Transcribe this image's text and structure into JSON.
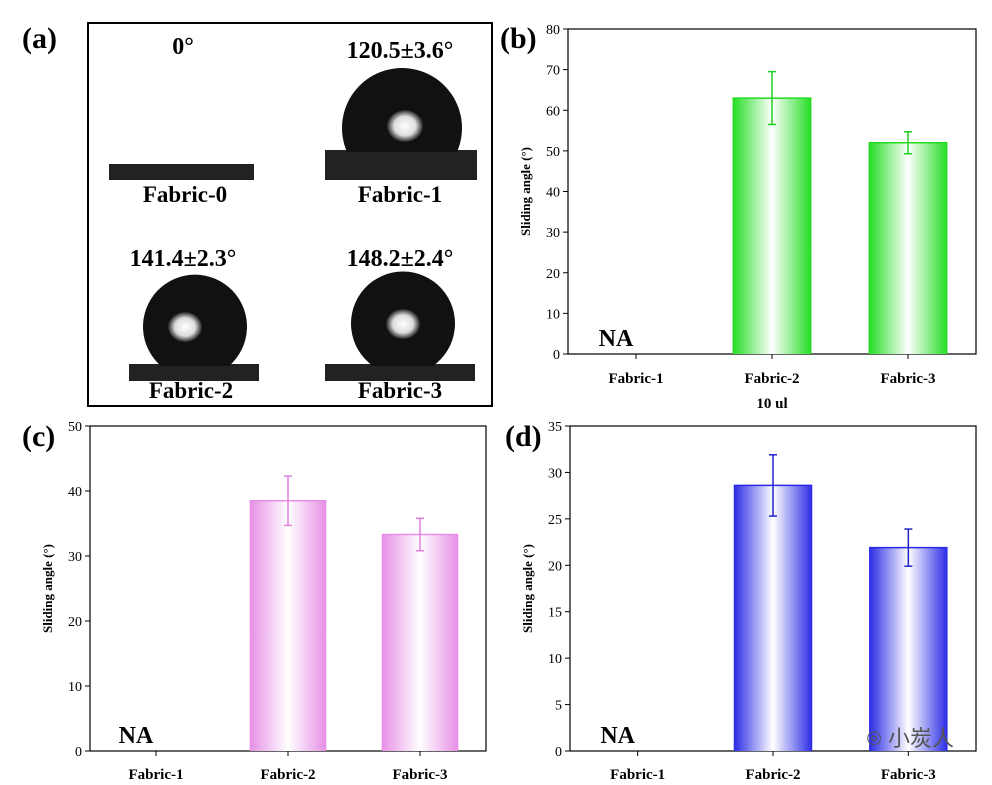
{
  "panel_a": {
    "label": "(a)",
    "samples": [
      {
        "name": "Fabric-0",
        "angle": "0°"
      },
      {
        "name": "Fabric-1",
        "angle": "120.5±3.6°"
      },
      {
        "name": "Fabric-2",
        "angle": "141.4±2.3°"
      },
      {
        "name": "Fabric-3",
        "angle": "148.2±2.4°"
      }
    ]
  },
  "watermark": "小炭人",
  "chart_data": [
    {
      "id": "b",
      "label": "(b)",
      "type": "bar",
      "categories": [
        "Fabric-1",
        "Fabric-2",
        "Fabric-3"
      ],
      "xsublabel": "10 ul",
      "values": [
        null,
        63,
        52
      ],
      "errors": [
        null,
        6.5,
        2.7
      ],
      "na_text": "NA",
      "ylabel": "Sliding angle (°)",
      "ylim": [
        0,
        80
      ],
      "yticks": [
        0,
        10,
        20,
        30,
        40,
        50,
        60,
        70,
        80
      ],
      "bar_color": "#22dd22",
      "err_color": "#22cc22"
    },
    {
      "id": "c",
      "label": "(c)",
      "type": "bar",
      "categories": [
        "Fabric-1",
        "Fabric-2",
        "Fabric-3"
      ],
      "values": [
        null,
        38.5,
        33.3
      ],
      "errors": [
        null,
        3.8,
        2.5
      ],
      "na_text": "NA",
      "ylabel": "Sliding angle (°)",
      "ylim": [
        0,
        50
      ],
      "yticks": [
        0,
        10,
        20,
        30,
        40,
        50
      ],
      "bar_color": "#e68fe6",
      "err_color": "#e07fe0"
    },
    {
      "id": "d",
      "label": "(d)",
      "type": "bar",
      "categories": [
        "Fabric-1",
        "Fabric-2",
        "Fabric-3"
      ],
      "values": [
        null,
        28.6,
        21.9
      ],
      "errors": [
        null,
        3.3,
        2.0
      ],
      "na_text": "NA",
      "ylabel": "Sliding angle (°)",
      "ylim": [
        0,
        35
      ],
      "yticks": [
        0,
        5,
        10,
        15,
        20,
        25,
        30,
        35
      ],
      "bar_color": "#2a2ae6",
      "err_color": "#2222cc"
    }
  ]
}
